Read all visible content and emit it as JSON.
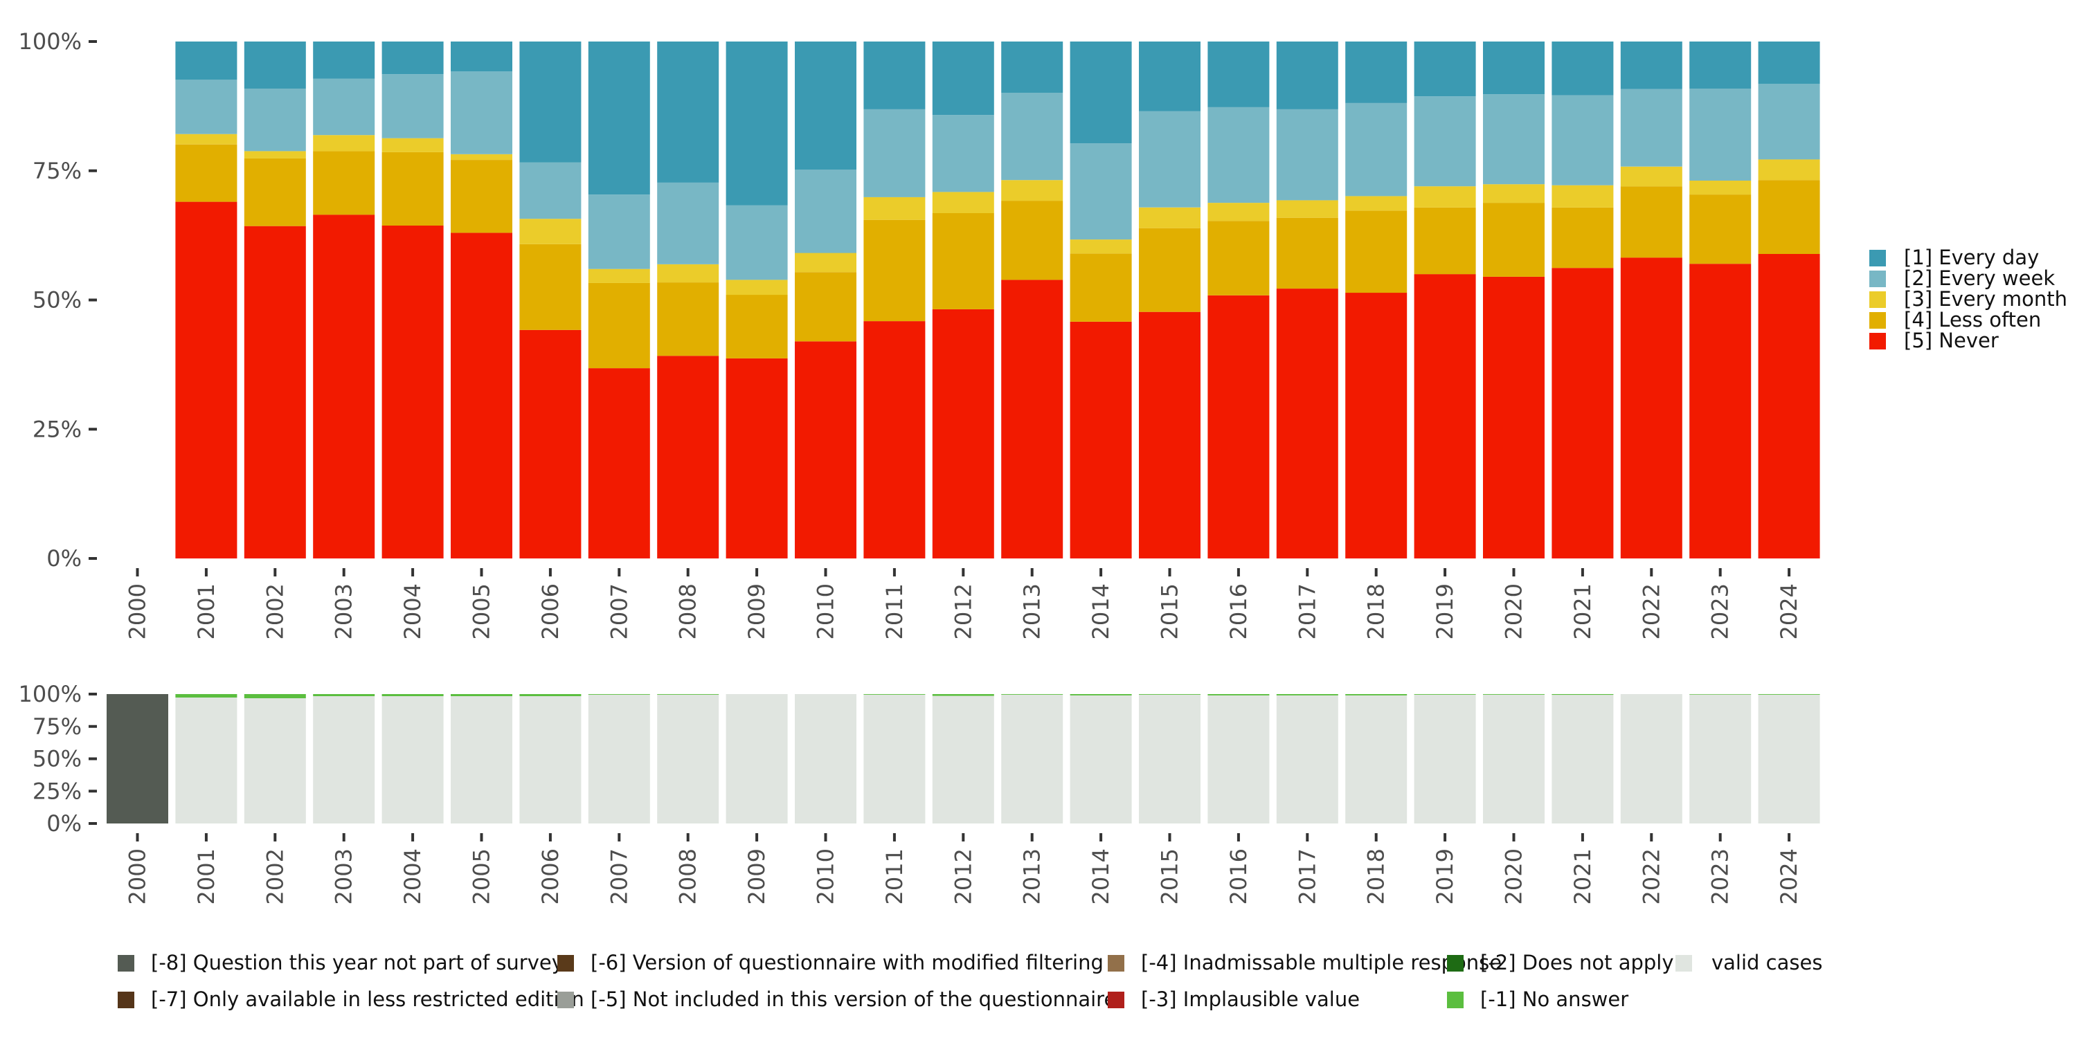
{
  "chart_data": [
    {
      "type": "bar",
      "stacked": true,
      "normalized": true,
      "title": "",
      "xlabel": "",
      "ylabel": "",
      "ylim": [
        0,
        100
      ],
      "yticks": [
        "0%",
        "25%",
        "50%",
        "75%",
        "100%"
      ],
      "ytick_values": [
        0,
        25,
        50,
        75,
        100
      ],
      "categories": [
        "2000",
        "2001",
        "2002",
        "2003",
        "2004",
        "2005",
        "2006",
        "2007",
        "2008",
        "2009",
        "2010",
        "2011",
        "2012",
        "2013",
        "2014",
        "2015",
        "2016",
        "2017",
        "2018",
        "2019",
        "2020",
        "2021",
        "2022",
        "2023",
        "2024"
      ],
      "legend_position": "right",
      "series": [
        {
          "name": "[5] Never",
          "color": "#F21A00",
          "values": [
            null,
            69.0,
            64.3,
            66.5,
            64.4,
            63.0,
            44.2,
            36.8,
            39.2,
            38.7,
            42.0,
            45.9,
            48.2,
            53.9,
            45.8,
            47.7,
            50.9,
            52.2,
            51.4,
            55.0,
            54.5,
            56.2,
            58.2,
            57.0,
            58.9
          ]
        },
        {
          "name": "[4] Less often",
          "color": "#E1AF00",
          "values": [
            null,
            11.1,
            13.1,
            12.3,
            14.2,
            14.1,
            16.6,
            16.5,
            14.2,
            12.3,
            13.4,
            19.6,
            18.6,
            15.3,
            13.2,
            16.2,
            14.4,
            13.7,
            15.9,
            12.9,
            14.3,
            11.7,
            13.8,
            13.4,
            14.3
          ]
        },
        {
          "name": "[3] Every month",
          "color": "#EBCC2A",
          "values": [
            null,
            2.0,
            1.4,
            3.1,
            2.7,
            1.1,
            4.9,
            2.7,
            3.5,
            2.9,
            3.7,
            4.4,
            4.1,
            4.0,
            2.7,
            4.0,
            3.5,
            3.4,
            2.8,
            4.1,
            3.6,
            4.3,
            3.8,
            2.7,
            4.0
          ]
        },
        {
          "name": "[2] Every week",
          "color": "#78B7C5",
          "values": [
            null,
            10.5,
            12.1,
            10.9,
            12.4,
            16.0,
            10.9,
            14.4,
            15.8,
            14.4,
            16.1,
            17.0,
            14.9,
            16.9,
            18.6,
            18.6,
            18.5,
            17.6,
            18.0,
            17.4,
            17.4,
            17.4,
            15.0,
            17.8,
            14.6
          ]
        },
        {
          "name": "[1] Every day",
          "color": "#3B9AB2",
          "values": [
            null,
            7.4,
            9.1,
            7.2,
            6.3,
            5.8,
            23.4,
            29.6,
            27.3,
            31.7,
            24.8,
            13.1,
            14.2,
            9.9,
            19.7,
            13.5,
            12.7,
            13.1,
            11.9,
            10.6,
            10.2,
            10.4,
            9.2,
            9.1,
            8.2
          ]
        }
      ],
      "legend": [
        {
          "label": "[1] Every day",
          "color": "#3B9AB2"
        },
        {
          "label": "[2] Every week",
          "color": "#78B7C5"
        },
        {
          "label": "[3] Every month",
          "color": "#EBCC2A"
        },
        {
          "label": "[4] Less often",
          "color": "#E1AF00"
        },
        {
          "label": "[5] Never",
          "color": "#F21A00"
        }
      ]
    },
    {
      "type": "bar",
      "stacked": true,
      "normalized": true,
      "title": "",
      "ylim": [
        0,
        100
      ],
      "yticks": [
        "0%",
        "25%",
        "50%",
        "75%",
        "100%"
      ],
      "ytick_values": [
        0,
        25,
        50,
        75,
        100
      ],
      "categories": [
        "2000",
        "2001",
        "2002",
        "2003",
        "2004",
        "2005",
        "2006",
        "2007",
        "2008",
        "2009",
        "2010",
        "2011",
        "2012",
        "2013",
        "2014",
        "2015",
        "2016",
        "2017",
        "2018",
        "2019",
        "2020",
        "2021",
        "2022",
        "2023",
        "2024"
      ],
      "legend_position": "bottom",
      "series": [
        {
          "name": "valid cases",
          "color": "#E0E5E0",
          "values": [
            0,
            97.3,
            96.8,
            98.4,
            98.4,
            98.4,
            98.4,
            99.5,
            99.5,
            100,
            100,
            99.5,
            98.6,
            99.5,
            99.0,
            99.5,
            99.0,
            99.0,
            99.0,
            99.5,
            99.5,
            99.4,
            100,
            99.6,
            99.5
          ]
        },
        {
          "name": "[-1] No answer",
          "color": "#5BBE3F",
          "values": [
            0,
            2.7,
            3.2,
            1.6,
            1.6,
            1.6,
            1.6,
            0.5,
            0.5,
            0,
            0,
            0.5,
            1.4,
            0.5,
            1.0,
            0.5,
            1.0,
            1.0,
            1.0,
            0.5,
            0.5,
            0.6,
            0,
            0.4,
            0.5
          ]
        },
        {
          "name": "[-8] Question this year not part of survey",
          "color": "#545B53",
          "values": [
            100,
            0,
            0,
            0,
            0,
            0,
            0,
            0,
            0,
            0,
            0,
            0,
            0,
            0,
            0,
            0,
            0,
            0,
            0,
            0,
            0,
            0,
            0,
            0,
            0
          ]
        }
      ],
      "legend": [
        {
          "label": "[-8] Question this year not part of survey",
          "color": "#545B53"
        },
        {
          "label": "[-7] Only available in less restricted edition",
          "color": "#553519"
        },
        {
          "label": "[-6] Version of questionnaire with modified filtering",
          "color": "#5A3A1A"
        },
        {
          "label": "[-5] Not included in this version of the questionnaire",
          "color": "#9A9E98"
        },
        {
          "label": "[-4] Inadmissable multiple response",
          "color": "#92704A"
        },
        {
          "label": "[-3] Implausible value",
          "color": "#B0201B"
        },
        {
          "label": "[-2] Does not apply",
          "color": "#1E6B14"
        },
        {
          "label": "[-1] No answer",
          "color": "#5BBE3F"
        },
        {
          "label": "valid cases",
          "color": "#E0E5E0"
        }
      ]
    }
  ]
}
